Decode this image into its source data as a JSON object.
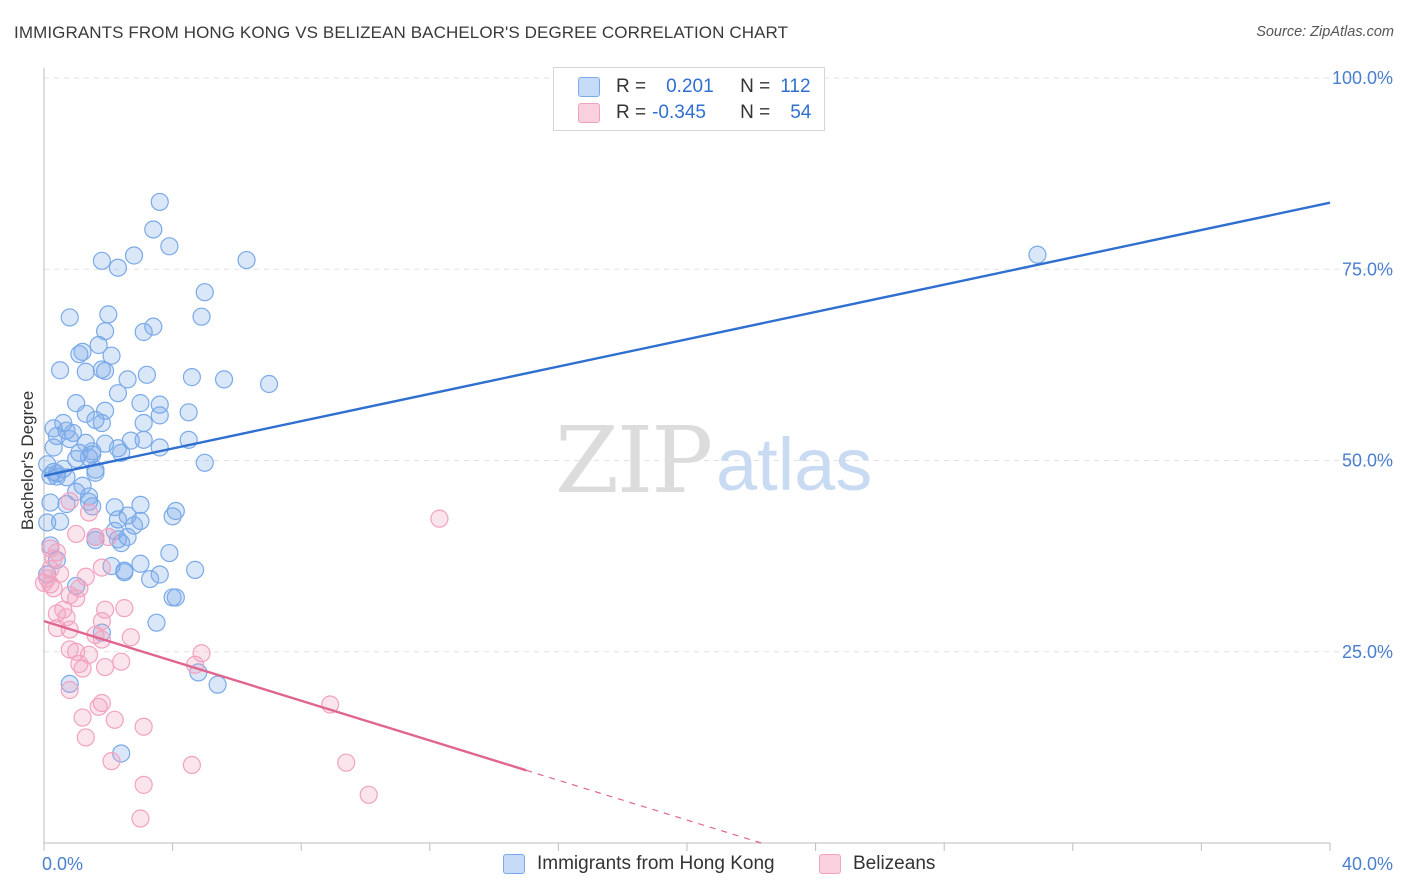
{
  "chart_data": {
    "type": "scatter",
    "title": "IMMIGRANTS FROM HONG KONG VS BELIZEAN BACHELOR'S DEGREE CORRELATION CHART",
    "source": "Source: ZipAtlas.com",
    "xlabel": "",
    "ylabel": "Bachelor's Degree",
    "xlim": [
      0,
      40
    ],
    "ylim": [
      0,
      100
    ],
    "x_tick_labels": [
      "0.0%",
      "40.0%"
    ],
    "y_tick_labels": [
      "100.0%",
      "75.0%",
      "50.0%",
      "25.0%"
    ],
    "y_tick_values": [
      100,
      75,
      50,
      25
    ],
    "grid": true,
    "legend_position": "top-center",
    "watermark": {
      "zip": "ZIP",
      "atlas": "atlas"
    },
    "series": [
      {
        "name": "Immigrants from Hong Kong",
        "color": "#7aaae8",
        "line_color": "#2f6fd0",
        "R": "0.201",
        "N": "112",
        "trend": {
          "x0": 0,
          "y0": 48.0,
          "x1": 40,
          "y1": 83.7
        },
        "points": [
          [
            3.6,
            83.8
          ],
          [
            3.4,
            80.2
          ],
          [
            3.9,
            78.0
          ],
          [
            2.8,
            76.8
          ],
          [
            1.8,
            76.1
          ],
          [
            6.3,
            76.2
          ],
          [
            2.3,
            75.2
          ],
          [
            30.9,
            76.9
          ],
          [
            5.0,
            72.0
          ],
          [
            0.8,
            68.7
          ],
          [
            2.0,
            69.1
          ],
          [
            4.9,
            68.8
          ],
          [
            3.4,
            67.5
          ],
          [
            1.9,
            66.9
          ],
          [
            3.1,
            66.8
          ],
          [
            1.7,
            65.1
          ],
          [
            1.1,
            63.9
          ],
          [
            1.2,
            64.2
          ],
          [
            2.1,
            63.7
          ],
          [
            0.5,
            61.8
          ],
          [
            1.3,
            61.6
          ],
          [
            1.9,
            61.7
          ],
          [
            1.8,
            61.9
          ],
          [
            3.2,
            61.2
          ],
          [
            4.6,
            60.9
          ],
          [
            5.6,
            60.6
          ],
          [
            2.6,
            60.6
          ],
          [
            7.0,
            60.0
          ],
          [
            2.3,
            58.8
          ],
          [
            3.0,
            57.5
          ],
          [
            1.0,
            57.5
          ],
          [
            3.6,
            57.3
          ],
          [
            1.9,
            56.5
          ],
          [
            4.5,
            56.3
          ],
          [
            3.6,
            55.9
          ],
          [
            1.3,
            56.1
          ],
          [
            0.6,
            54.9
          ],
          [
            1.6,
            55.3
          ],
          [
            0.3,
            54.2
          ],
          [
            1.8,
            54.9
          ],
          [
            3.1,
            54.9
          ],
          [
            0.7,
            53.9
          ],
          [
            0.9,
            53.6
          ],
          [
            0.4,
            53.2
          ],
          [
            0.8,
            52.8
          ],
          [
            2.7,
            52.6
          ],
          [
            3.1,
            52.7
          ],
          [
            4.5,
            52.7
          ],
          [
            1.3,
            52.3
          ],
          [
            1.9,
            52.2
          ],
          [
            0.3,
            51.7
          ],
          [
            3.6,
            51.7
          ],
          [
            2.3,
            51.6
          ],
          [
            1.5,
            51.2
          ],
          [
            2.4,
            51.0
          ],
          [
            1.1,
            51.0
          ],
          [
            1.5,
            50.8
          ],
          [
            1.4,
            50.4
          ],
          [
            1.0,
            50.2
          ],
          [
            5.0,
            49.7
          ],
          [
            0.1,
            49.5
          ],
          [
            0.6,
            48.9
          ],
          [
            0.4,
            48.3
          ],
          [
            0.3,
            48.5
          ],
          [
            0.2,
            48.0
          ],
          [
            1.6,
            48.8
          ],
          [
            1.6,
            48.4
          ],
          [
            0.4,
            47.9
          ],
          [
            0.7,
            47.8
          ],
          [
            1.2,
            46.7
          ],
          [
            1.0,
            45.9
          ],
          [
            1.4,
            45.3
          ],
          [
            1.4,
            44.6
          ],
          [
            0.2,
            44.5
          ],
          [
            3.0,
            44.2
          ],
          [
            0.7,
            44.3
          ],
          [
            1.5,
            44.0
          ],
          [
            2.2,
            43.9
          ],
          [
            4.1,
            43.4
          ],
          [
            4.0,
            42.7
          ],
          [
            2.6,
            42.8
          ],
          [
            2.3,
            42.3
          ],
          [
            3.0,
            42.1
          ],
          [
            2.8,
            41.5
          ],
          [
            0.5,
            42.0
          ],
          [
            0.1,
            41.9
          ],
          [
            2.2,
            40.8
          ],
          [
            1.6,
            40.0
          ],
          [
            1.6,
            39.6
          ],
          [
            2.4,
            39.2
          ],
          [
            0.2,
            38.9
          ],
          [
            2.3,
            39.7
          ],
          [
            2.6,
            40.0
          ],
          [
            3.9,
            37.9
          ],
          [
            0.4,
            37.0
          ],
          [
            2.1,
            36.2
          ],
          [
            3.0,
            36.5
          ],
          [
            4.7,
            35.7
          ],
          [
            2.5,
            35.6
          ],
          [
            2.5,
            35.4
          ],
          [
            3.6,
            35.1
          ],
          [
            0.1,
            35.1
          ],
          [
            3.3,
            34.5
          ],
          [
            1.0,
            33.6
          ],
          [
            4.0,
            32.1
          ],
          [
            3.5,
            28.8
          ],
          [
            1.8,
            27.5
          ],
          [
            4.8,
            22.3
          ],
          [
            5.4,
            20.7
          ],
          [
            2.4,
            11.7
          ],
          [
            0.8,
            20.8
          ],
          [
            4.1,
            32.1
          ]
        ]
      },
      {
        "name": "Belizeans",
        "color": "#f2a2bf",
        "line_color": "#e0668f",
        "R": "-0.345",
        "N": "54",
        "trend": {
          "x0": 0,
          "y0": 29.0,
          "x1": 15.0,
          "y1": 9.5
        },
        "points": [
          [
            0.2,
            38.5
          ],
          [
            0.4,
            38.0
          ],
          [
            0.3,
            37.2
          ],
          [
            0.2,
            35.8
          ],
          [
            0.5,
            35.2
          ],
          [
            0.1,
            34.6
          ],
          [
            0.0,
            34.0
          ],
          [
            0.2,
            33.8
          ],
          [
            1.8,
            36.0
          ],
          [
            1.0,
            32.0
          ],
          [
            0.8,
            32.4
          ],
          [
            1.1,
            33.3
          ],
          [
            1.3,
            34.8
          ],
          [
            1.6,
            40.0
          ],
          [
            1.0,
            40.4
          ],
          [
            2.0,
            40.0
          ],
          [
            0.8,
            44.7
          ],
          [
            1.4,
            43.2
          ],
          [
            12.3,
            42.4
          ],
          [
            0.4,
            30.0
          ],
          [
            0.6,
            30.5
          ],
          [
            1.9,
            30.5
          ],
          [
            2.5,
            30.7
          ],
          [
            1.8,
            29.0
          ],
          [
            0.7,
            29.5
          ],
          [
            0.4,
            28.1
          ],
          [
            0.8,
            27.9
          ],
          [
            1.6,
            27.2
          ],
          [
            2.7,
            26.9
          ],
          [
            1.8,
            26.6
          ],
          [
            0.8,
            25.3
          ],
          [
            1.0,
            25.0
          ],
          [
            1.4,
            24.6
          ],
          [
            2.4,
            23.7
          ],
          [
            1.1,
            23.4
          ],
          [
            4.9,
            24.8
          ],
          [
            4.7,
            23.3
          ],
          [
            1.9,
            23.0
          ],
          [
            1.2,
            22.8
          ],
          [
            0.8,
            20.0
          ],
          [
            1.8,
            18.3
          ],
          [
            1.7,
            17.8
          ],
          [
            8.9,
            18.1
          ],
          [
            1.2,
            16.4
          ],
          [
            2.2,
            16.1
          ],
          [
            3.1,
            15.2
          ],
          [
            1.3,
            13.8
          ],
          [
            2.1,
            10.7
          ],
          [
            4.6,
            10.2
          ],
          [
            9.4,
            10.5
          ],
          [
            3.1,
            7.6
          ],
          [
            10.1,
            6.3
          ],
          [
            3.0,
            3.2
          ],
          [
            0.3,
            33.3
          ]
        ]
      }
    ]
  },
  "legend": {
    "r_label": "R =",
    "n_label": "N ="
  }
}
